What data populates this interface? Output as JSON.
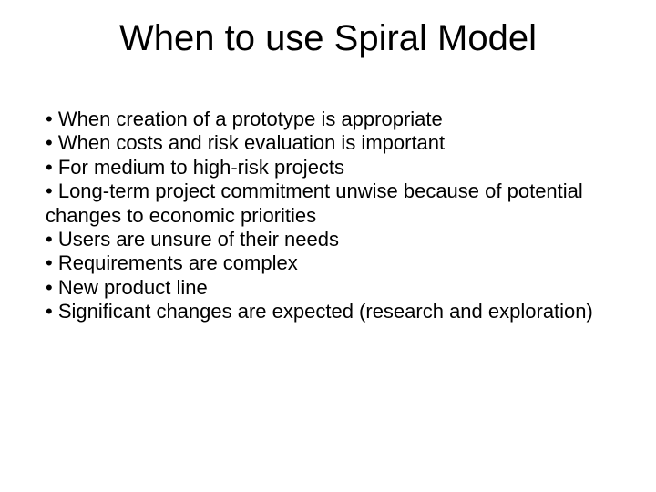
{
  "slide": {
    "title": "When to use Spiral Model",
    "bullets": [
      "When creation of a prototype is appropriate",
      "When costs and risk evaluation is important",
      "For medium to high-risk projects",
      "Long-term project commitment unwise because of potential changes to economic priorities",
      "Users are unsure of their needs",
      "Requirements are complex",
      "New product line",
      "Significant changes are expected (research and exploration)"
    ],
    "title_fontsize": 40,
    "body_fontsize": 22,
    "title_color": "#000000",
    "body_color": "#000000",
    "background_color": "#ffffff",
    "font_family": "Arial"
  }
}
